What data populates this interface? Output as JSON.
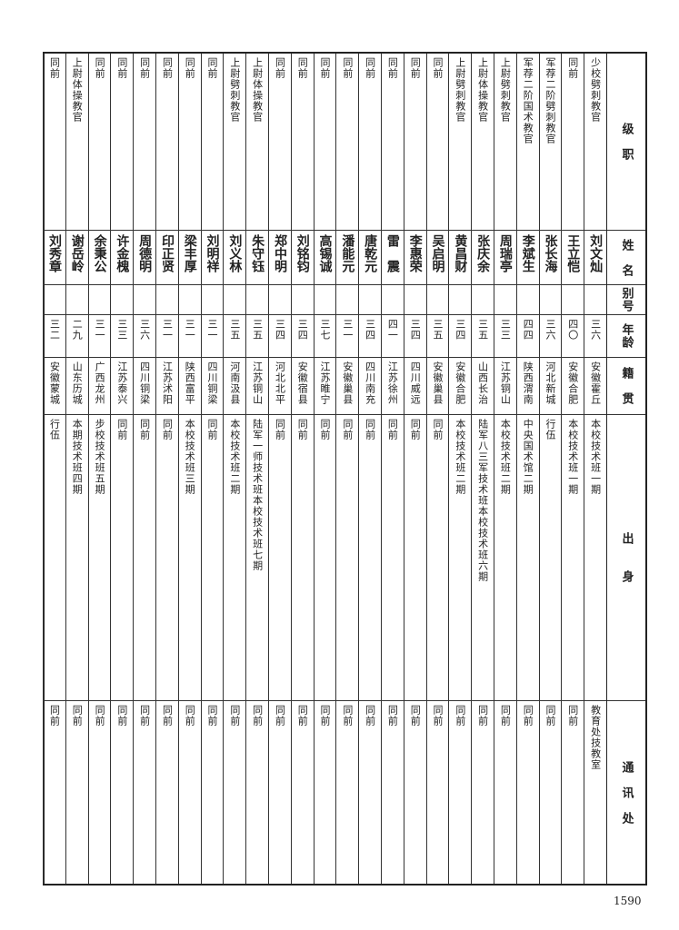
{
  "headers": [
    "级　职",
    "姓　名",
    "别号",
    "年龄",
    "籍　贯",
    "出　　身",
    "通　讯　处"
  ],
  "rows": [
    {
      "rank": "少校劈刺教官",
      "name": "刘文灿",
      "alias": "",
      "age": "三六",
      "origin": "安徽霍丘",
      "background": "本校技术班一期",
      "contact": "教育处技教室"
    },
    {
      "rank": "同前",
      "name": "王立恺",
      "alias": "",
      "age": "四〇",
      "origin": "安徽合肥",
      "background": "本校技术班一期",
      "contact": "同前"
    },
    {
      "rank": "军荐二阶劈刺教官",
      "name": "张长海",
      "alias": "",
      "age": "三六",
      "origin": "河北新城",
      "background": "行伍",
      "contact": "同前"
    },
    {
      "rank": "军荐二阶国术教官",
      "name": "李斌生",
      "alias": "",
      "age": "四四",
      "origin": "陕西渭南",
      "background": "中央国术馆二期",
      "contact": "同前"
    },
    {
      "rank": "上尉劈刺教官",
      "name": "周瑞亭",
      "alias": "",
      "age": "三三",
      "origin": "江苏铜山",
      "background": "本校技术班二期",
      "contact": "同前"
    },
    {
      "rank": "上尉体操教官",
      "name": "张庆余",
      "alias": "",
      "age": "三五",
      "origin": "山西长治",
      "background": "陆军八三军技术班本校技术班六期",
      "contact": "同前"
    },
    {
      "rank": "上尉劈刺教官",
      "name": "黄昌财",
      "alias": "",
      "age": "三四",
      "origin": "安徽合肥",
      "background": "本校技术班二期",
      "contact": "同前"
    },
    {
      "rank": "同前",
      "name": "吴启明",
      "alias": "",
      "age": "三五",
      "origin": "安徽巢县",
      "background": "同前",
      "contact": "同前"
    },
    {
      "rank": "同前",
      "name": "李惠荣",
      "alias": "",
      "age": "三四",
      "origin": "四川威远",
      "background": "同前",
      "contact": "同前"
    },
    {
      "rank": "同前",
      "name": "雷　震",
      "alias": "",
      "age": "四一",
      "origin": "江苏徐州",
      "background": "同前",
      "contact": "同前"
    },
    {
      "rank": "同前",
      "name": "唐乾元",
      "alias": "",
      "age": "三四",
      "origin": "四川南充",
      "background": "同前",
      "contact": "同前"
    },
    {
      "rank": "同前",
      "name": "潘能元",
      "alias": "",
      "age": "三一",
      "origin": "安徽巢县",
      "background": "同前",
      "contact": "同前"
    },
    {
      "rank": "同前",
      "name": "高锡诚",
      "alias": "",
      "age": "三七",
      "origin": "江苏睢宁",
      "background": "同前",
      "contact": "同前"
    },
    {
      "rank": "同前",
      "name": "刘铭钧",
      "alias": "",
      "age": "三四",
      "origin": "安徽宿县",
      "background": "同前",
      "contact": "同前"
    },
    {
      "rank": "同前",
      "name": "郑中明",
      "alias": "",
      "age": "三四",
      "origin": "河北北平",
      "background": "同前",
      "contact": "同前"
    },
    {
      "rank": "上尉体操教官",
      "name": "朱守钰",
      "alias": "",
      "age": "三五",
      "origin": "江苏铜山",
      "background": "陆军一师技术班本校技术班七期",
      "contact": "同前"
    },
    {
      "rank": "上尉劈刺教官",
      "name": "刘义林",
      "alias": "",
      "age": "三五",
      "origin": "河南汲县",
      "background": "本校技术班二期",
      "contact": "同前"
    },
    {
      "rank": "同前",
      "name": "刘明祥",
      "alias": "",
      "age": "三一",
      "origin": "四川铜梁",
      "background": "同前",
      "contact": "同前"
    },
    {
      "rank": "同前",
      "name": "梁丰厚",
      "alias": "",
      "age": "三一",
      "origin": "陕西富平",
      "background": "本校技术班三期",
      "contact": "同前"
    },
    {
      "rank": "同前",
      "name": "印正贤",
      "alias": "",
      "age": "三一",
      "origin": "江苏沭阳",
      "background": "同前",
      "contact": "同前"
    },
    {
      "rank": "同前",
      "name": "周德明",
      "alias": "",
      "age": "三六",
      "origin": "四川铜梁",
      "background": "同前",
      "contact": "同前"
    },
    {
      "rank": "同前",
      "name": "许金槐",
      "alias": "",
      "age": "三三",
      "origin": "江苏泰兴",
      "background": "同前",
      "contact": "同前"
    },
    {
      "rank": "同前",
      "name": "余秉公",
      "alias": "",
      "age": "三一",
      "origin": "广西龙州",
      "background": "步校技术班五期",
      "contact": "同前"
    },
    {
      "rank": "上尉体操教官",
      "name": "谢岳岭",
      "alias": "",
      "age": "二九",
      "origin": "山东历城",
      "background": "本期技术班四期",
      "contact": "同前"
    },
    {
      "rank": "同前",
      "name": "刘秀章",
      "alias": "",
      "age": "三二",
      "origin": "安徽蒙城",
      "background": "行伍",
      "contact": "同前"
    }
  ],
  "page_number": "1590"
}
